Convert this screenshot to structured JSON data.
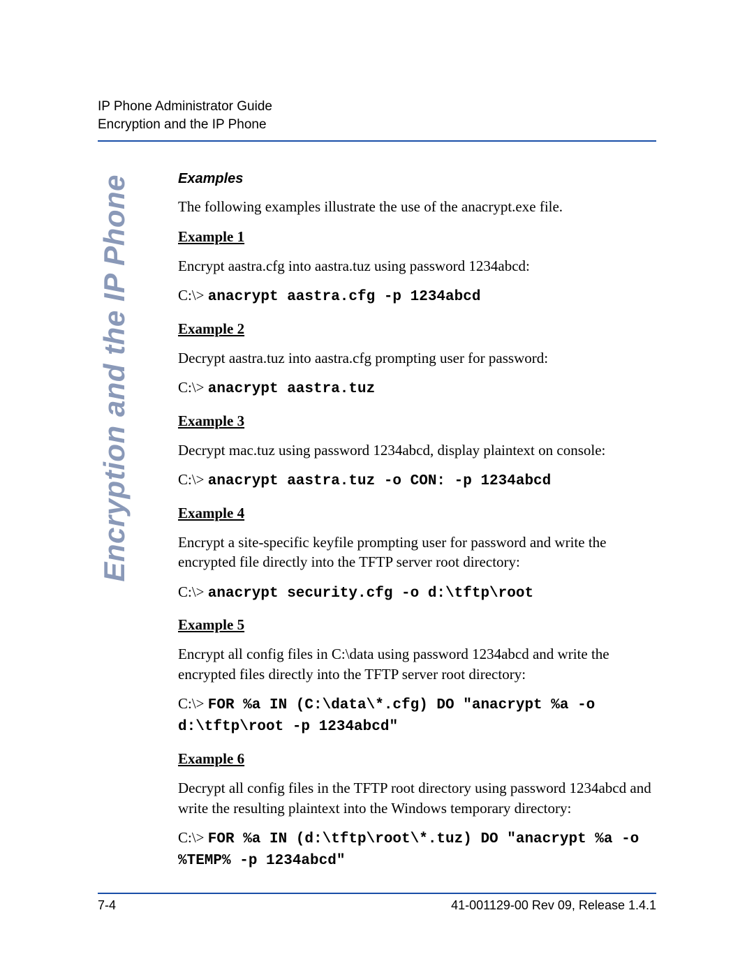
{
  "header": {
    "line1": "IP Phone Administrator Guide",
    "line2": "Encryption and the IP Phone"
  },
  "side_title": "Encryption and the IP Phone",
  "section_title": "Examples",
  "intro": "The following examples illustrate the use of the anacrypt.exe file.",
  "prompt": "C:\\> ",
  "examples": [
    {
      "label": "Example 1",
      "desc": "Encrypt aastra.cfg into aastra.tuz using password 1234abcd:",
      "cmd": "anacrypt aastra.cfg -p 1234abcd"
    },
    {
      "label": "Example 2",
      "desc": "Decrypt aastra.tuz into aastra.cfg prompting user for password:",
      "cmd": "anacrypt aastra.tuz"
    },
    {
      "label": "Example 3",
      "desc": "Decrypt mac.tuz using password 1234abcd, display plaintext on console:",
      "cmd": "anacrypt aastra.tuz -o CON: -p 1234abcd"
    },
    {
      "label": "Example 4",
      "desc": "Encrypt a site-specific keyfile prompting user for password and write the encrypted file directly into the TFTP server root directory:",
      "cmd": "anacrypt security.cfg -o d:\\tftp\\root"
    },
    {
      "label": "Example 5",
      "desc": "Encrypt all config files in C:\\data using password 1234abcd and write the encrypted files directly into the TFTP server root directory:",
      "cmd": "FOR %a IN (C:\\data\\*.cfg) DO \"anacrypt %a -o d:\\tftp\\root -p 1234abcd\""
    },
    {
      "label": "Example 6",
      "desc": "Decrypt all config files in the TFTP root directory using password 1234abcd and write the resulting plaintext into the Windows temporary directory:",
      "cmd": "FOR %a IN (d:\\tftp\\root\\*.tuz) DO \"anacrypt %a -o %TEMP% -p 1234abcd\""
    }
  ],
  "footer": {
    "left": "7-4",
    "right": "41-001129-00 Rev 09, Release 1.4.1"
  },
  "colors": {
    "rule": "#1a4fa8",
    "side_title": "#8a99b8",
    "text": "#000000",
    "bg": "#ffffff"
  }
}
